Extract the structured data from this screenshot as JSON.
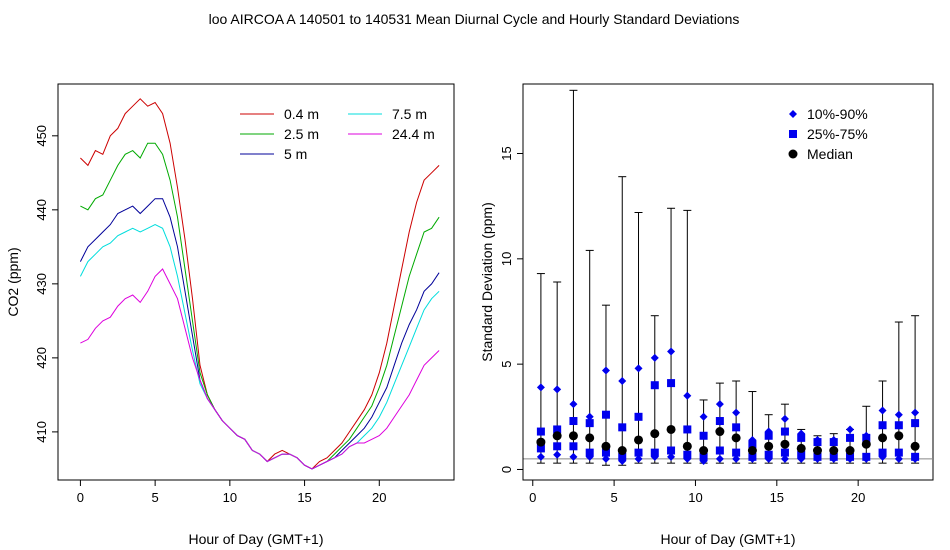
{
  "figure": {
    "title": "loo   AIRCOA A   140501 to 140531   Mean Diurnal Cycle and Hourly Standard Deviations"
  },
  "chart_data": [
    {
      "type": "line",
      "xlabel": "Hour of Day (GMT+1)",
      "ylabel": "CO2 (ppm)",
      "xlim": [
        -1.5,
        25
      ],
      "ylim": [
        403.5,
        457
      ],
      "xticks": [
        0,
        5,
        10,
        15,
        20
      ],
      "yticks": [
        410,
        420,
        430,
        440,
        450
      ],
      "grid": false,
      "legend_position": "top-right",
      "series": [
        {
          "name": "0.4 m",
          "color": "#cc0000",
          "x": [
            0,
            0.5,
            1,
            1.5,
            2,
            2.5,
            3,
            3.5,
            4,
            4.5,
            5,
            5.5,
            6,
            6.5,
            7,
            7.5,
            8,
            8.5,
            9,
            9.5,
            10,
            10.5,
            11,
            11.5,
            12,
            12.5,
            13,
            13.5,
            14,
            14.5,
            15,
            15.5,
            16,
            16.5,
            17,
            17.5,
            18,
            18.5,
            19,
            19.5,
            20,
            20.5,
            21,
            21.5,
            22,
            22.5,
            23,
            23.5,
            24
          ],
          "y": [
            447,
            446,
            448,
            447.5,
            450,
            451,
            453,
            454,
            455,
            454,
            454.5,
            453,
            449,
            443,
            436,
            428,
            419,
            415,
            413,
            411.5,
            410.5,
            409.5,
            409,
            407.5,
            407,
            406,
            407,
            407.5,
            407,
            406.5,
            405.5,
            405,
            406,
            406.5,
            407.5,
            408.5,
            410,
            411.5,
            413,
            415,
            418,
            422,
            427,
            432,
            437,
            441,
            444,
            445,
            446
          ]
        },
        {
          "name": "2.5 m",
          "color": "#00aa00",
          "x": [
            0,
            0.5,
            1,
            1.5,
            2,
            2.5,
            3,
            3.5,
            4,
            4.5,
            5,
            5.5,
            6,
            6.5,
            7,
            7.5,
            8,
            8.5,
            9,
            9.5,
            10,
            10.5,
            11,
            11.5,
            12,
            12.5,
            13,
            13.5,
            14,
            14.5,
            15,
            15.5,
            16,
            16.5,
            17,
            17.5,
            18,
            18.5,
            19,
            19.5,
            20,
            20.5,
            21,
            21.5,
            22,
            22.5,
            23,
            23.5,
            24
          ],
          "y": [
            440.5,
            440,
            441.5,
            442,
            444,
            446,
            447.5,
            448,
            447,
            449,
            449,
            447.5,
            444,
            439,
            432,
            425,
            418,
            415,
            413,
            411.5,
            410.5,
            409.5,
            409,
            407.5,
            407,
            406,
            406.5,
            407,
            407,
            406.5,
            405.5,
            405,
            405.5,
            406,
            407,
            408,
            409,
            410.5,
            412,
            413.5,
            416,
            419,
            423,
            427,
            431,
            434,
            437,
            437.5,
            439
          ]
        },
        {
          "name": "5 m",
          "color": "#000099",
          "x": [
            0,
            0.5,
            1,
            1.5,
            2,
            2.5,
            3,
            3.5,
            4,
            4.5,
            5,
            5.5,
            6,
            6.5,
            7,
            7.5,
            8,
            8.5,
            9,
            9.5,
            10,
            10.5,
            11,
            11.5,
            12,
            12.5,
            13,
            13.5,
            14,
            14.5,
            15,
            15.5,
            16,
            16.5,
            17,
            17.5,
            18,
            18.5,
            19,
            19.5,
            20,
            20.5,
            21,
            21.5,
            22,
            22.5,
            23,
            23.5,
            24
          ],
          "y": [
            433,
            435,
            436,
            437,
            438,
            439.5,
            440,
            440.5,
            439.5,
            440.5,
            441.5,
            441.5,
            439,
            435,
            429,
            423,
            417,
            414.5,
            413,
            411.5,
            410.5,
            409.5,
            409,
            407.5,
            407,
            406,
            406.5,
            407,
            407,
            406.5,
            405.5,
            405,
            405.5,
            406,
            406.5,
            407.5,
            408.5,
            409.5,
            410.5,
            412,
            414,
            416,
            419,
            422,
            424.5,
            426.5,
            429,
            430,
            431.5
          ]
        },
        {
          "name": "7.5 m",
          "color": "#00dddd",
          "x": [
            0,
            0.5,
            1,
            1.5,
            2,
            2.5,
            3,
            3.5,
            4,
            4.5,
            5,
            5.5,
            6,
            6.5,
            7,
            7.5,
            8,
            8.5,
            9,
            9.5,
            10,
            10.5,
            11,
            11.5,
            12,
            12.5,
            13,
            13.5,
            14,
            14.5,
            15,
            15.5,
            16,
            16.5,
            17,
            17.5,
            18,
            18.5,
            19,
            19.5,
            20,
            20.5,
            21,
            21.5,
            22,
            22.5,
            23,
            23.5,
            24
          ],
          "y": [
            431,
            433,
            434,
            435,
            435.5,
            436.5,
            437,
            437.5,
            437,
            437.5,
            438,
            437.5,
            435,
            431,
            426,
            421,
            416.5,
            414.5,
            413,
            411.5,
            410.5,
            409.5,
            409,
            407.5,
            407,
            406,
            406.5,
            407,
            407,
            406.5,
            405.5,
            405,
            405.5,
            406,
            406.5,
            407,
            408,
            408.5,
            409.5,
            410.5,
            412,
            414,
            416.5,
            419,
            421.5,
            424,
            426.5,
            428,
            429
          ]
        },
        {
          "name": "24.4 m",
          "color": "#dd00dd",
          "x": [
            0,
            0.5,
            1,
            1.5,
            2,
            2.5,
            3,
            3.5,
            4,
            4.5,
            5,
            5.5,
            6,
            6.5,
            7,
            7.5,
            8,
            8.5,
            9,
            9.5,
            10,
            10.5,
            11,
            11.5,
            12,
            12.5,
            13,
            13.5,
            14,
            14.5,
            15,
            15.5,
            16,
            16.5,
            17,
            17.5,
            18,
            18.5,
            19,
            19.5,
            20,
            20.5,
            21,
            21.5,
            22,
            22.5,
            23,
            23.5,
            24
          ],
          "y": [
            422,
            422.5,
            424,
            425,
            425.5,
            427,
            428,
            428.5,
            427.5,
            429,
            431,
            432,
            430,
            428,
            424,
            420,
            417,
            414.5,
            413,
            411.5,
            410.5,
            409.5,
            409,
            407.5,
            407,
            406,
            406.5,
            407,
            407,
            406.5,
            405.5,
            405,
            405.5,
            406,
            406.5,
            407,
            408,
            408.5,
            408.5,
            409,
            409.5,
            410.5,
            412,
            413.5,
            415,
            417,
            419,
            420,
            421
          ]
        }
      ]
    },
    {
      "type": "scatter",
      "xlabel": "Hour of Day (GMT+1)",
      "ylabel": "Standard Deviation (ppm)",
      "xlim": [
        -0.6,
        24.6
      ],
      "ylim": [
        -0.5,
        18.3
      ],
      "xticks": [
        0,
        5,
        10,
        15,
        20
      ],
      "yticks": [
        0,
        5,
        10,
        15
      ],
      "grid": false,
      "reference_line_y": 0.5,
      "legend_position": "top-right",
      "legend": [
        {
          "label": "10%-90%",
          "marker": "diamond",
          "color": "#0000ee"
        },
        {
          "label": "25%-75%",
          "marker": "square",
          "color": "#0000ee"
        },
        {
          "label": "Median",
          "marker": "circle",
          "color": "#000000"
        }
      ],
      "hours": [
        0.5,
        1.5,
        2.5,
        3.5,
        4.5,
        5.5,
        6.5,
        7.5,
        8.5,
        9.5,
        10.5,
        11.5,
        12.5,
        13.5,
        14.5,
        15.5,
        16.5,
        17.5,
        18.5,
        19.5,
        20.5,
        21.5,
        22.5,
        23.5
      ],
      "max": [
        9.3,
        8.9,
        18.0,
        10.4,
        7.8,
        13.9,
        12.2,
        7.3,
        12.4,
        12.3,
        3.3,
        4.1,
        4.2,
        3.7,
        2.6,
        3.1,
        1.9,
        1.6,
        1.7,
        1.9,
        3.0,
        4.2,
        7.0,
        7.3
      ],
      "min": [
        0.3,
        0.3,
        0.3,
        0.3,
        0.2,
        0.2,
        0.3,
        0.3,
        0.3,
        0.3,
        0.3,
        0.3,
        0.3,
        0.3,
        0.3,
        0.3,
        0.3,
        0.3,
        0.3,
        0.3,
        0.3,
        0.3,
        0.3,
        0.3
      ],
      "p90": [
        3.9,
        3.8,
        3.1,
        2.5,
        4.7,
        4.2,
        4.8,
        5.3,
        5.6,
        3.5,
        2.5,
        3.1,
        2.7,
        1.4,
        1.8,
        2.4,
        1.7,
        1.4,
        1.4,
        1.9,
        1.6,
        2.8,
        2.6,
        2.7
      ],
      "p75": [
        1.8,
        1.9,
        2.3,
        2.2,
        2.6,
        2.0,
        2.5,
        4.0,
        4.1,
        1.9,
        1.6,
        2.3,
        2.0,
        1.2,
        1.6,
        1.8,
        1.5,
        1.3,
        1.3,
        1.5,
        1.5,
        2.1,
        2.1,
        2.2
      ],
      "median": [
        1.3,
        1.6,
        1.6,
        1.5,
        1.1,
        0.9,
        1.4,
        1.7,
        1.9,
        1.1,
        0.9,
        1.8,
        1.5,
        0.9,
        1.1,
        1.2,
        1.0,
        0.9,
        0.9,
        0.9,
        1.2,
        1.5,
        1.6,
        1.1
      ],
      "p25": [
        1.0,
        1.1,
        1.1,
        0.8,
        0.8,
        0.6,
        0.8,
        0.8,
        0.9,
        0.7,
        0.6,
        0.9,
        0.8,
        0.6,
        0.7,
        0.8,
        0.7,
        0.6,
        0.6,
        0.6,
        0.6,
        0.8,
        0.8,
        0.6
      ],
      "p10": [
        0.6,
        0.7,
        0.6,
        0.6,
        0.5,
        0.4,
        0.5,
        0.6,
        0.6,
        0.5,
        0.4,
        0.5,
        0.5,
        0.5,
        0.5,
        0.5,
        0.5,
        0.5,
        0.5,
        0.5,
        0.5,
        0.6,
        0.5,
        0.5
      ]
    }
  ]
}
